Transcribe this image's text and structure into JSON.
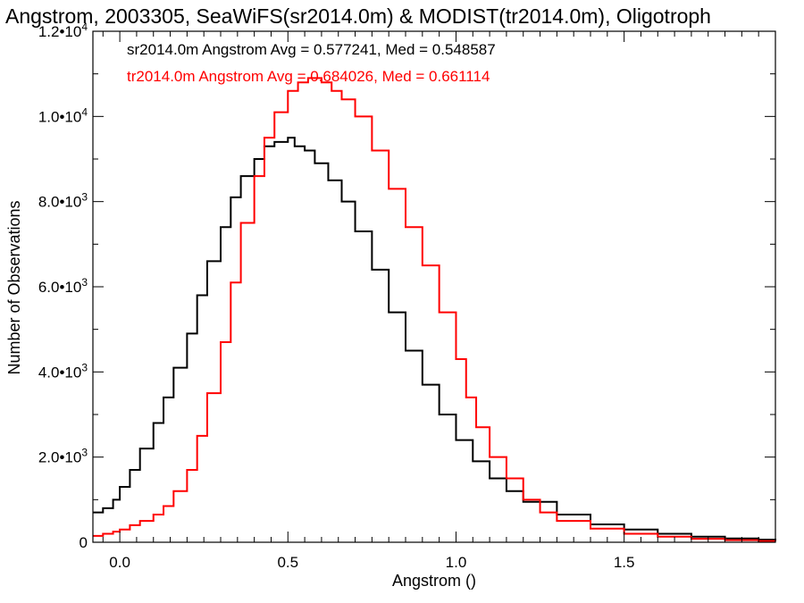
{
  "chart_data": {
    "type": "step",
    "title": "Angstrom, 2003305, SeaWiFS(sr2014.0m) & MODIST(tr2014.0m), Oligotroph",
    "xlabel": "Angstrom ()",
    "ylabel": "Number of Observations",
    "xlim": [
      -0.08,
      1.95
    ],
    "ylim": [
      0,
      12000
    ],
    "x_ticks": [
      {
        "value": 0.0,
        "label": "0.0"
      },
      {
        "value": 0.5,
        "label": "0.5"
      },
      {
        "value": 1.0,
        "label": "1.0"
      },
      {
        "value": 1.5,
        "label": "1.5"
      }
    ],
    "y_ticks": [
      {
        "value": 0,
        "base": "0",
        "exp": ""
      },
      {
        "value": 2000,
        "base": "2.0•10",
        "exp": "3"
      },
      {
        "value": 4000,
        "base": "4.0•10",
        "exp": "3"
      },
      {
        "value": 6000,
        "base": "6.0•10",
        "exp": "3"
      },
      {
        "value": 8000,
        "base": "8.0•10",
        "exp": "3"
      },
      {
        "value": 10000,
        "base": "1.0•10",
        "exp": "4"
      },
      {
        "value": 12000,
        "base": "1.2•10",
        "exp": "4"
      }
    ],
    "grid": false,
    "series": [
      {
        "label": "sr2014.0m Angstrom Avg = 0.577241, Med = 0.548587",
        "color": "#000000",
        "x": [
          -0.08,
          -0.05,
          -0.02,
          0.0,
          0.03,
          0.06,
          0.1,
          0.13,
          0.16,
          0.2,
          0.23,
          0.26,
          0.3,
          0.33,
          0.36,
          0.4,
          0.43,
          0.46,
          0.5,
          0.52,
          0.55,
          0.58,
          0.62,
          0.66,
          0.7,
          0.75,
          0.8,
          0.85,
          0.9,
          0.95,
          1.0,
          1.05,
          1.1,
          1.15,
          1.2,
          1.3,
          1.4,
          1.5,
          1.6,
          1.7,
          1.8,
          1.9,
          1.95
        ],
        "y": [
          700,
          800,
          1000,
          1300,
          1700,
          2200,
          2800,
          3400,
          4100,
          4900,
          5800,
          6600,
          7400,
          8100,
          8600,
          9000,
          9300,
          9400,
          9500,
          9300,
          9200,
          8900,
          8500,
          8000,
          7300,
          6400,
          5400,
          4500,
          3700,
          3000,
          2400,
          1900,
          1500,
          1200,
          950,
          650,
          420,
          300,
          200,
          130,
          90,
          60,
          50
        ]
      },
      {
        "label": "tr2014.0m Angstrom Avg = 0.684026, Med = 0.661114",
        "color": "#ff0000",
        "x": [
          -0.08,
          -0.05,
          -0.02,
          0.0,
          0.03,
          0.06,
          0.1,
          0.13,
          0.16,
          0.2,
          0.23,
          0.26,
          0.3,
          0.33,
          0.36,
          0.4,
          0.43,
          0.46,
          0.5,
          0.53,
          0.56,
          0.6,
          0.63,
          0.66,
          0.7,
          0.75,
          0.8,
          0.85,
          0.9,
          0.95,
          1.0,
          1.03,
          1.06,
          1.1,
          1.15,
          1.2,
          1.25,
          1.3,
          1.4,
          1.5,
          1.6,
          1.7,
          1.8,
          1.9,
          1.95
        ],
        "y": [
          150,
          200,
          250,
          300,
          400,
          500,
          650,
          850,
          1200,
          1700,
          2500,
          3500,
          4700,
          6100,
          7500,
          8600,
          9500,
          10100,
          10600,
          10800,
          10900,
          10800,
          10600,
          10400,
          10000,
          9200,
          8300,
          7400,
          6500,
          5400,
          4300,
          3400,
          2700,
          2000,
          1500,
          1000,
          700,
          500,
          320,
          200,
          130,
          80,
          50,
          30,
          25
        ]
      }
    ]
  }
}
